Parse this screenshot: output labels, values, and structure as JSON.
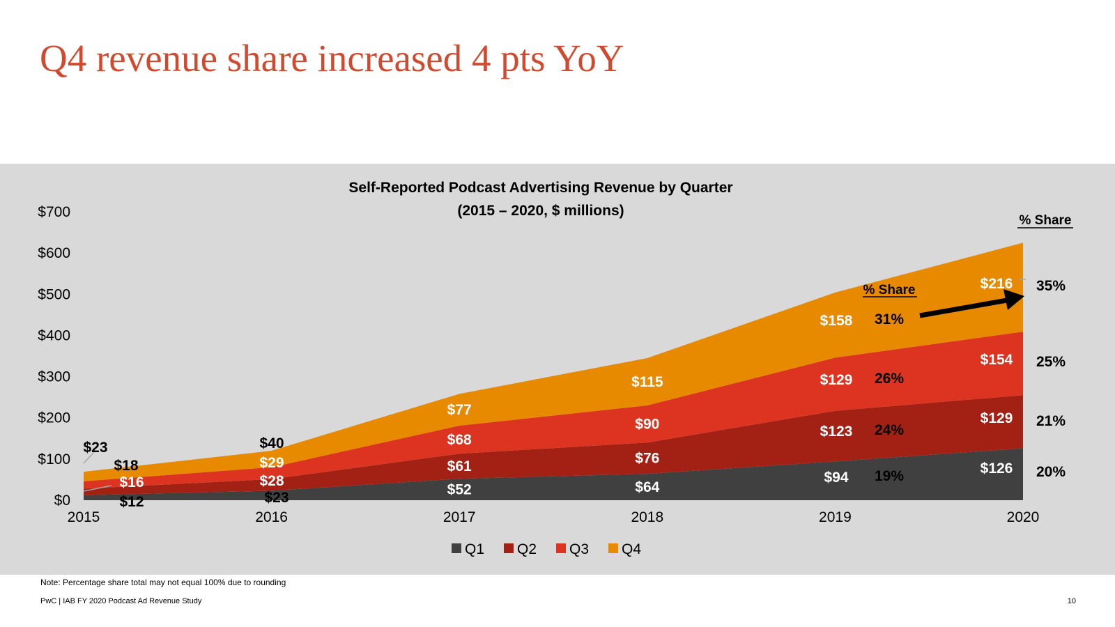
{
  "slide": {
    "title": "Q4 revenue share increased 4 pts YoY",
    "note": "Note: Percentage share total may not equal 100% due to rounding",
    "footer": "PwC  |  IAB FY 2020 Podcast Ad Revenue Study",
    "page_number": "10"
  },
  "chart_data": {
    "type": "area",
    "stacked": true,
    "title": "Self-Reported Podcast Advertising Revenue by Quarter",
    "subtitle": "(2015 – 2020, $ millions)",
    "x": [
      "2015",
      "2016",
      "2017",
      "2018",
      "2019",
      "2020"
    ],
    "ylim": [
      0,
      700
    ],
    "yticks": [
      "$0",
      "$100",
      "$200",
      "$300",
      "$400",
      "$500",
      "$600",
      "$700"
    ],
    "ytick_values": [
      0,
      100,
      200,
      300,
      400,
      500,
      600,
      700
    ],
    "grid": false,
    "legend_position": "bottom",
    "series": [
      {
        "name": "Q1",
        "color": "#404040",
        "values": [
          12,
          23,
          52,
          64,
          94,
          126
        ],
        "labels": [
          "$12",
          "$23",
          "$52",
          "$64",
          "$94",
          "$126"
        ]
      },
      {
        "name": "Q2",
        "color": "#a32015",
        "values": [
          16,
          28,
          61,
          76,
          123,
          129
        ],
        "labels": [
          "$16",
          "$28",
          "$61",
          "$76",
          "$123",
          "$129"
        ]
      },
      {
        "name": "Q3",
        "color": "#dc3420",
        "values": [
          18,
          29,
          68,
          90,
          129,
          154
        ],
        "labels": [
          "$18",
          "$29",
          "$68",
          "$90",
          "$129",
          "$154"
        ]
      },
      {
        "name": "Q4",
        "color": "#e88a00",
        "values": [
          23,
          40,
          77,
          115,
          158,
          216
        ],
        "labels": [
          "$23",
          "$40",
          "$77",
          "$115",
          "$158",
          "$216"
        ]
      }
    ],
    "share_header": "% Share",
    "share_2019": [
      "19%",
      "24%",
      "26%",
      "31%"
    ],
    "share_2020": [
      "20%",
      "21%",
      "25%",
      "35%"
    ]
  }
}
